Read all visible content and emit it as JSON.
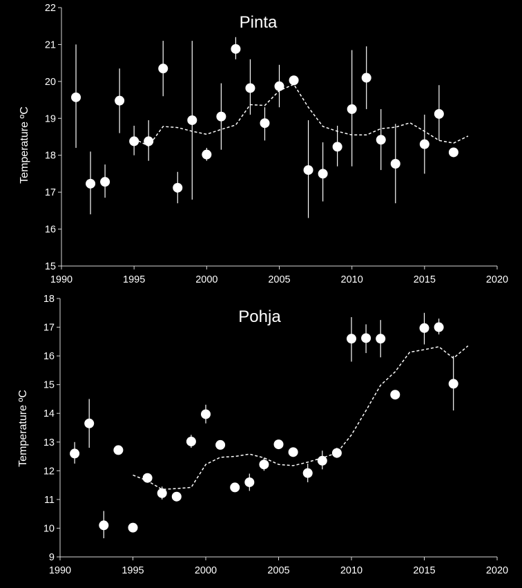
{
  "colors": {
    "background": "#000000",
    "foreground": "#ffffff",
    "axis": "#d9d9d9"
  },
  "chart_data": [
    {
      "type": "scatter",
      "title": "Pinta",
      "ylabel": "Temperature ºC",
      "xlim": [
        1990,
        2020
      ],
      "ylim": [
        15,
        22
      ],
      "xticks": [
        1990,
        1995,
        2000,
        2005,
        2010,
        2015,
        2020
      ],
      "yticks": [
        15,
        16,
        17,
        18,
        19,
        20,
        21,
        22
      ],
      "legend": "none",
      "grid": false,
      "points": [
        {
          "x": 1991,
          "y": 19.57,
          "lo": 18.2,
          "hi": 21.0
        },
        {
          "x": 1992,
          "y": 17.23,
          "lo": 16.4,
          "hi": 18.1
        },
        {
          "x": 1993,
          "y": 17.28,
          "lo": 16.85,
          "hi": 17.75
        },
        {
          "x": 1994,
          "y": 19.48,
          "lo": 18.6,
          "hi": 20.35
        },
        {
          "x": 1995,
          "y": 18.38,
          "lo": 18.0,
          "hi": 18.8
        },
        {
          "x": 1996,
          "y": 18.38,
          "lo": 17.85,
          "hi": 18.95
        },
        {
          "x": 1997,
          "y": 20.35,
          "lo": 19.6,
          "hi": 21.1
        },
        {
          "x": 1998,
          "y": 17.12,
          "lo": 16.7,
          "hi": 17.55
        },
        {
          "x": 1999,
          "y": 18.95,
          "lo": 16.8,
          "hi": 21.1
        },
        {
          "x": 2000,
          "y": 18.02,
          "lo": 17.85,
          "hi": 18.2
        },
        {
          "x": 2001,
          "y": 19.05,
          "lo": 18.15,
          "hi": 19.95
        },
        {
          "x": 2002,
          "y": 20.88,
          "lo": 20.6,
          "hi": 21.2
        },
        {
          "x": 2003,
          "y": 19.82,
          "lo": 19.1,
          "hi": 20.6
        },
        {
          "x": 2004,
          "y": 18.87,
          "lo": 18.4,
          "hi": 19.3
        },
        {
          "x": 2005,
          "y": 19.87,
          "lo": 19.3,
          "hi": 20.45
        },
        {
          "x": 2006,
          "y": 20.03,
          "lo": 19.95,
          "hi": 20.1
        },
        {
          "x": 2007,
          "y": 17.6,
          "lo": 16.3,
          "hi": 18.95
        },
        {
          "x": 2008,
          "y": 17.5,
          "lo": 16.75,
          "hi": 18.35
        },
        {
          "x": 2009,
          "y": 18.23,
          "lo": 17.7,
          "hi": 18.8
        },
        {
          "x": 2010,
          "y": 19.25,
          "lo": 17.7,
          "hi": 20.85
        },
        {
          "x": 2011,
          "y": 20.1,
          "lo": 19.25,
          "hi": 20.95
        },
        {
          "x": 2012,
          "y": 18.42,
          "lo": 17.6,
          "hi": 19.25
        },
        {
          "x": 2013,
          "y": 17.77,
          "lo": 16.7,
          "hi": 18.85
        },
        {
          "x": 2015,
          "y": 18.3,
          "lo": 17.5,
          "hi": 19.1
        },
        {
          "x": 2016,
          "y": 19.12,
          "lo": 18.4,
          "hi": 19.9
        },
        {
          "x": 2017,
          "y": 18.08,
          "lo": 18.0,
          "hi": 18.15
        }
      ],
      "trend": {
        "x": [
          1995,
          1996,
          1997,
          1998,
          1999,
          2000,
          2001,
          2002,
          2003,
          2004,
          2005,
          2006,
          2007,
          2008,
          2009,
          2010,
          2011,
          2012,
          2013,
          2014,
          2015,
          2016,
          2017,
          2018
        ],
        "y": [
          18.45,
          18.25,
          18.78,
          18.75,
          18.65,
          18.57,
          18.7,
          18.82,
          19.37,
          19.35,
          19.75,
          19.92,
          19.3,
          18.78,
          18.65,
          18.55,
          18.55,
          18.72,
          18.76,
          18.88,
          18.65,
          18.4,
          18.33,
          18.52
        ]
      }
    },
    {
      "type": "scatter",
      "title": "Pohja",
      "ylabel": "Temperature ºC",
      "xlim": [
        1990,
        2020
      ],
      "ylim": [
        9,
        18
      ],
      "xticks": [
        1990,
        1995,
        2000,
        2005,
        2010,
        2015,
        2020
      ],
      "yticks": [
        9,
        10,
        11,
        12,
        13,
        14,
        15,
        16,
        17,
        18
      ],
      "legend": "none",
      "grid": false,
      "points": [
        {
          "x": 1991,
          "y": 12.6,
          "lo": 12.25,
          "hi": 13.0
        },
        {
          "x": 1992,
          "y": 13.65,
          "lo": 12.8,
          "hi": 14.5
        },
        {
          "x": 1993,
          "y": 10.1,
          "lo": 9.65,
          "hi": 10.6
        },
        {
          "x": 1994,
          "y": 12.72,
          "lo": 12.6,
          "hi": 12.85
        },
        {
          "x": 1995,
          "y": 10.02,
          "lo": 9.95,
          "hi": 10.1
        },
        {
          "x": 1996,
          "y": 11.75,
          "lo": 11.6,
          "hi": 11.9
        },
        {
          "x": 1997,
          "y": 11.22,
          "lo": 11.0,
          "hi": 11.45
        },
        {
          "x": 1998,
          "y": 11.1,
          "lo": 11.0,
          "hi": 11.2
        },
        {
          "x": 1999,
          "y": 13.02,
          "lo": 12.8,
          "hi": 13.25
        },
        {
          "x": 2000,
          "y": 13.97,
          "lo": 13.65,
          "hi": 14.3
        },
        {
          "x": 2001,
          "y": 12.9,
          "lo": 12.8,
          "hi": 13.0
        },
        {
          "x": 2002,
          "y": 11.42,
          "lo": 11.35,
          "hi": 11.5
        },
        {
          "x": 2003,
          "y": 11.6,
          "lo": 11.3,
          "hi": 11.9
        },
        {
          "x": 2004,
          "y": 12.22,
          "lo": 12.0,
          "hi": 12.45
        },
        {
          "x": 2005,
          "y": 12.92,
          "lo": 12.8,
          "hi": 13.05
        },
        {
          "x": 2006,
          "y": 12.65,
          "lo": 12.55,
          "hi": 12.75
        },
        {
          "x": 2007,
          "y": 11.92,
          "lo": 11.6,
          "hi": 12.25
        },
        {
          "x": 2008,
          "y": 12.35,
          "lo": 12.05,
          "hi": 12.7
        },
        {
          "x": 2009,
          "y": 12.62,
          "lo": 12.45,
          "hi": 12.8
        },
        {
          "x": 2010,
          "y": 16.6,
          "lo": 15.8,
          "hi": 17.35
        },
        {
          "x": 2011,
          "y": 16.62,
          "lo": 16.1,
          "hi": 17.1
        },
        {
          "x": 2012,
          "y": 16.6,
          "lo": 15.95,
          "hi": 17.25
        },
        {
          "x": 2013,
          "y": 14.65,
          "lo": 14.55,
          "hi": 14.75
        },
        {
          "x": 2015,
          "y": 16.97,
          "lo": 16.4,
          "hi": 17.5
        },
        {
          "x": 2016,
          "y": 17.0,
          "lo": 16.75,
          "hi": 17.3
        },
        {
          "x": 2017,
          "y": 15.03,
          "lo": 14.1,
          "hi": 16.0
        }
      ],
      "trend": {
        "x": [
          1995,
          1996,
          1997,
          1998,
          1999,
          2000,
          2001,
          2002,
          2003,
          2004,
          2005,
          2006,
          2007,
          2008,
          2009,
          2010,
          2011,
          2012,
          2013,
          2014,
          2015,
          2016,
          2017,
          2018
        ],
        "y": [
          11.85,
          11.65,
          11.35,
          11.38,
          11.42,
          12.22,
          12.47,
          12.5,
          12.58,
          12.45,
          12.22,
          12.18,
          12.3,
          12.45,
          12.62,
          13.25,
          14.1,
          14.98,
          15.45,
          16.13,
          16.22,
          16.32,
          15.92,
          16.35
        ]
      }
    }
  ]
}
